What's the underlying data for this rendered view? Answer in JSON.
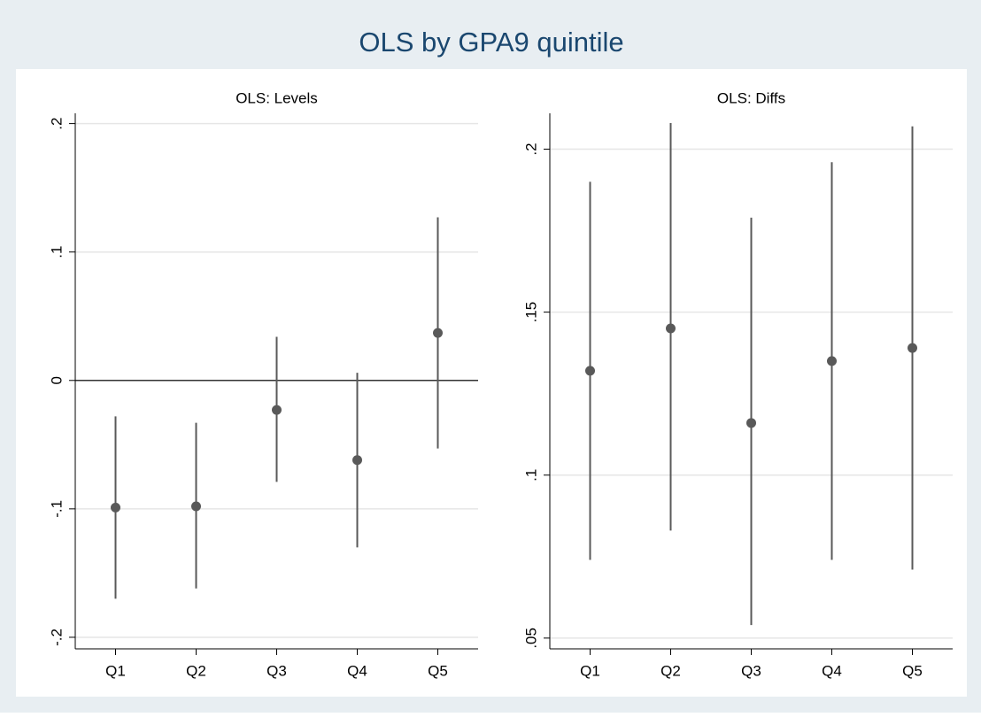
{
  "title": "OLS by GPA9 quintile",
  "chart_data": [
    {
      "type": "errorbar",
      "title": "OLS: Levels",
      "categories": [
        "Q1",
        "Q2",
        "Q3",
        "Q4",
        "Q5"
      ],
      "values": [
        -0.099,
        -0.098,
        -0.023,
        -0.062,
        0.037
      ],
      "lower": [
        -0.17,
        -0.162,
        -0.079,
        -0.13,
        -0.053
      ],
      "upper": [
        -0.028,
        -0.033,
        0.034,
        0.006,
        0.127
      ],
      "color": "#595959",
      "ylim": [
        -0.209,
        0.208
      ],
      "yticks": [
        {
          "value": -0.2,
          "label": "-.2"
        },
        {
          "value": -0.1,
          "label": "-.1"
        },
        0,
        {
          "value": 0.1,
          "label": ".1"
        },
        {
          "value": 0.2,
          "label": ".2"
        }
      ],
      "grid": true,
      "zero_line": true
    },
    {
      "type": "errorbar",
      "title": "OLS: Diffs",
      "categories": [
        "Q1",
        "Q2",
        "Q3",
        "Q4",
        "Q5"
      ],
      "values": [
        0.132,
        0.145,
        0.116,
        0.135,
        0.139
      ],
      "lower": [
        0.074,
        0.083,
        0.054,
        0.074,
        0.071
      ],
      "upper": [
        0.19,
        0.208,
        0.179,
        0.196,
        0.207
      ],
      "color": "#595959",
      "ylim": [
        0.0467,
        0.211
      ],
      "yticks": [
        {
          "value": 0.05,
          "label": ".05"
        },
        {
          "value": 0.1,
          "label": ".1"
        },
        {
          "value": 0.15,
          "label": ".15"
        },
        {
          "value": 0.2,
          "label": ".2"
        }
      ],
      "grid": true,
      "zero_line": false
    }
  ]
}
